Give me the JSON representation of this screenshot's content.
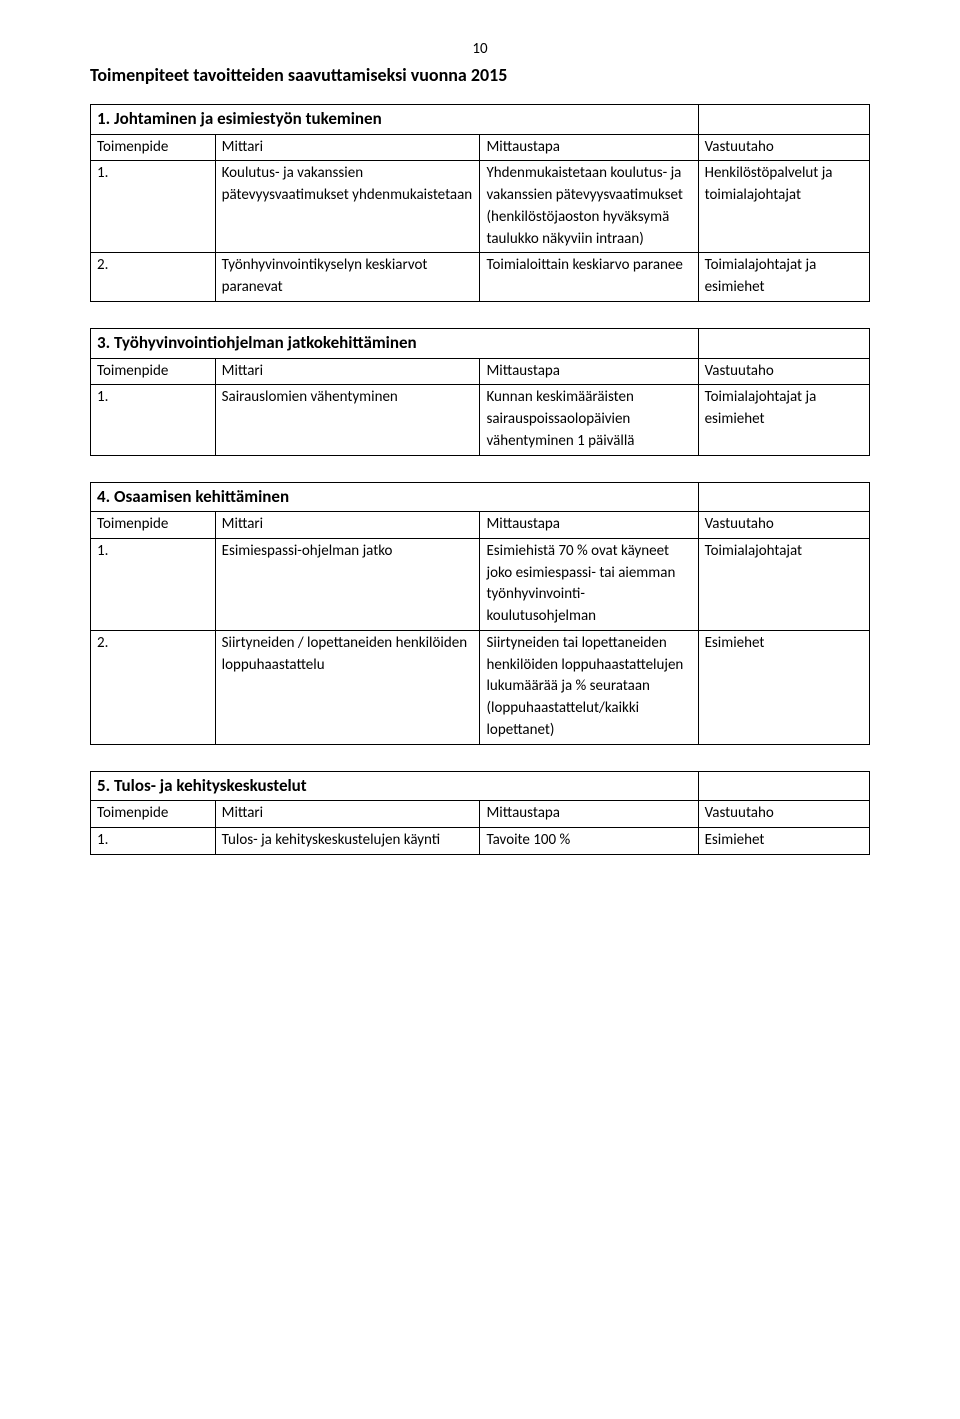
{
  "page_number": "10",
  "main_title": "Toimenpiteet tavoitteiden saavuttamiseksi vuonna 2015",
  "table_headers": {
    "c1": "Toimenpide",
    "c2": "Mittari",
    "c3": "Mittaustapa",
    "c4": "Vastuutaho"
  },
  "sections": {
    "s1": {
      "title": "1. Johtaminen ja esimiestyön tukeminen",
      "rows": [
        {
          "n": "1.",
          "mittari": "Koulutus- ja vakanssien pätevyysvaatimukset yhdenmukaistetaan",
          "mittaustapa": "Yhdenmukaistetaan koulutus- ja vakanssien pätevyysvaatimukset (henkilöstöjaoston hyväksymä taulukko näkyviin intraan)",
          "vastuutaho": "Henkilöstöpalvelut ja toimialajohtajat"
        },
        {
          "n": "2.",
          "mittari": "Työnhyvinvointikyselyn keskiarvot paranevat",
          "mittaustapa": "Toimialoittain keskiarvo paranee",
          "vastuutaho": "Toimialajohtajat ja esimiehet"
        }
      ]
    },
    "s2": {
      "title": "3. Työhyvinvointiohjelman jatkokehittäminen",
      "rows": [
        {
          "n": "1.",
          "mittari": "Sairauslomien vähentyminen",
          "mittaustapa": "Kunnan keskimääräisten sairauspoissaolopäivien vähentyminen 1 päivällä",
          "vastuutaho": "Toimialajohtajat ja esimiehet"
        }
      ]
    },
    "s3": {
      "title": "4. Osaamisen kehittäminen",
      "rows": [
        {
          "n": "1.",
          "mittari": "Esimiespassi-ohjelman jatko",
          "mittaustapa": "Esimiehistä 70 % ovat käyneet joko esimiespassi- tai aiemman työnhyvinvointi-koulutusohjelman",
          "vastuutaho": "Toimialajohtajat"
        },
        {
          "n": "2.",
          "mittari": "Siirtyneiden / lopettaneiden henkilöiden loppuhaastattelu",
          "mittaustapa": "Siirtyneiden tai lopettaneiden henkilöiden loppuhaastattelujen lukumäärää ja % seurataan (loppuhaastattelut/kaikki lopettanet)",
          "vastuutaho": "Esimiehet"
        }
      ]
    },
    "s4": {
      "title": "5. Tulos- ja kehityskeskustelut",
      "rows": [
        {
          "n": "1.",
          "mittari": "Tulos- ja kehityskeskustelujen käynti",
          "mittaustapa": "Tavoite 100 %",
          "vastuutaho": "Esimiehet"
        }
      ]
    }
  }
}
